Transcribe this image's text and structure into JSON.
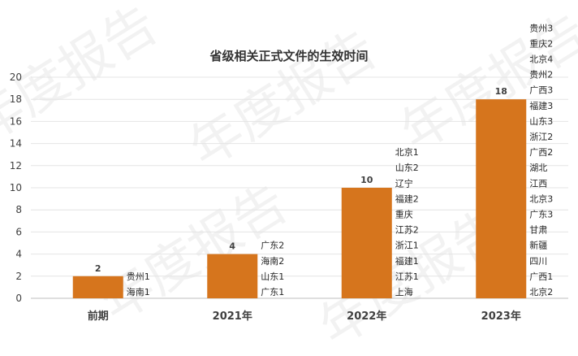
{
  "watermark": "年度报告",
  "chart_data": {
    "type": "bar",
    "title": "省级相关正式文件的生效时间",
    "xlabel": "",
    "ylabel": "",
    "ylim": [
      0,
      20
    ],
    "yticks": [
      0,
      2,
      4,
      6,
      8,
      10,
      12,
      14,
      16,
      18,
      20
    ],
    "grid": true,
    "legend": "none",
    "bar_color": "#d6751d",
    "categories": [
      "前期",
      "2021年",
      "2022年",
      "2023年"
    ],
    "values": [
      2,
      4,
      10,
      18
    ],
    "annotations": [
      [
        "海南1",
        "贵州1"
      ],
      [
        "广东1",
        "山东1",
        "海南2",
        "广东2"
      ],
      [
        "上海",
        "江苏1",
        "福建1",
        "浙江1",
        "江苏2",
        "重庆",
        "福建2",
        "辽宁",
        "山东2",
        "北京1"
      ],
      [
        "北京2",
        "广西1",
        "四川",
        "新疆",
        "甘肃",
        "广东3",
        "北京3",
        "江西",
        "湖北",
        "广西2",
        "浙江2",
        "山东3",
        "福建3",
        "广西3",
        "贵州2",
        "北京4",
        "重庆2",
        "贵州3"
      ]
    ]
  }
}
